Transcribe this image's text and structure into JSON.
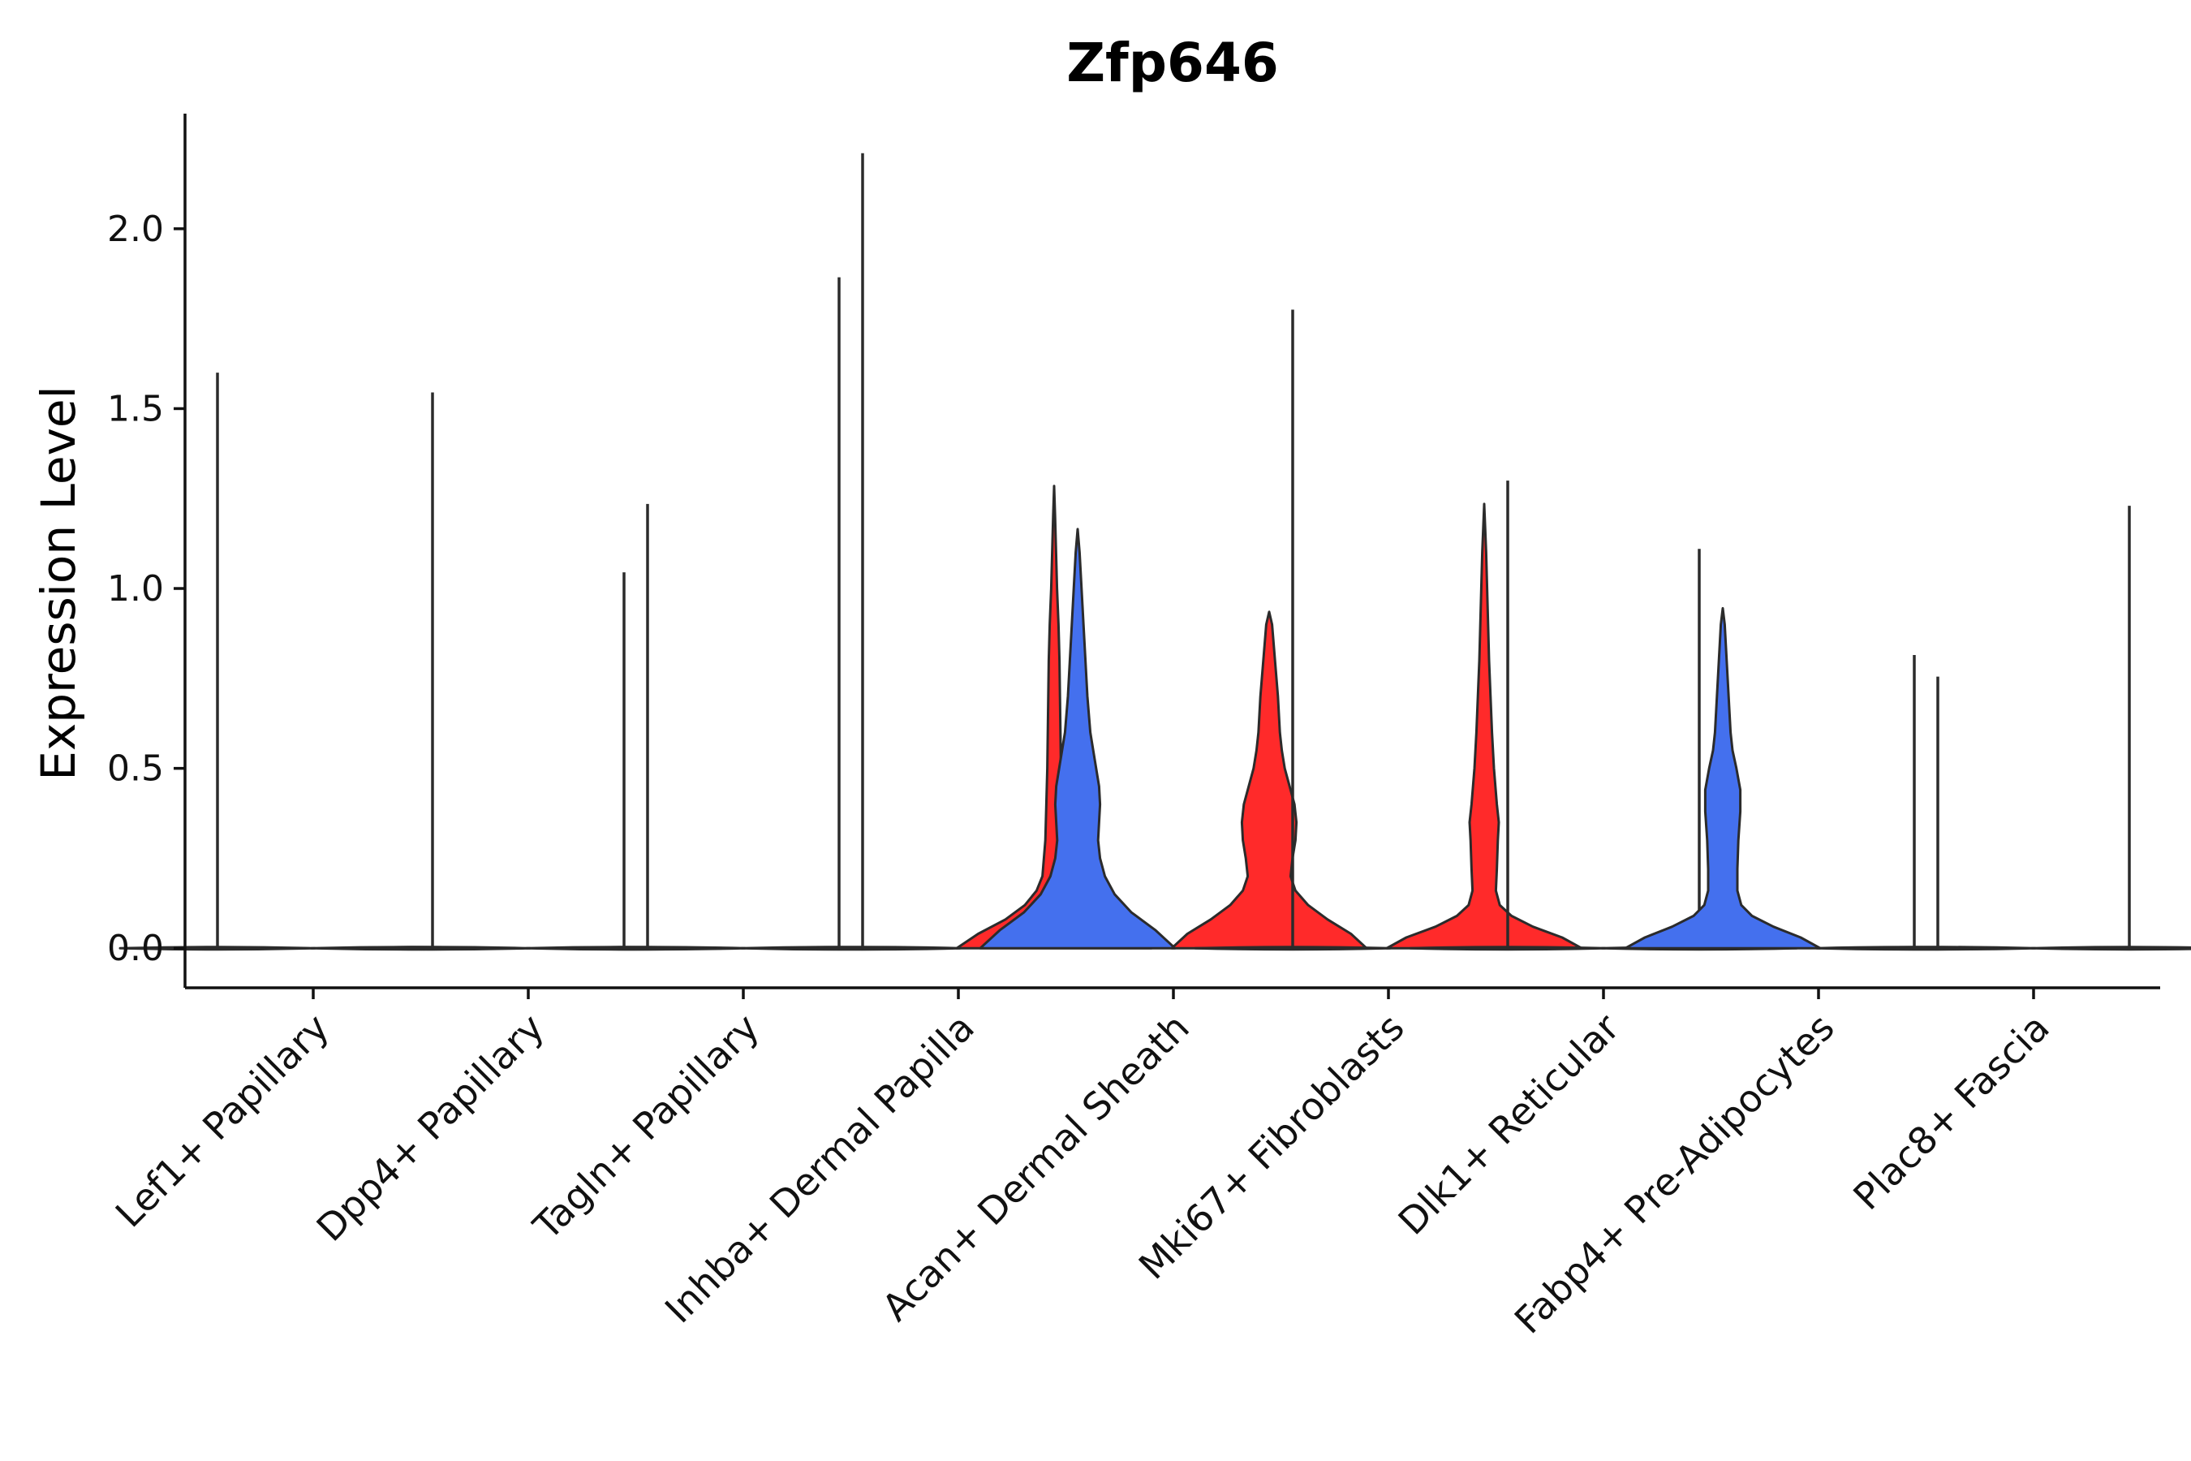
{
  "chart_data": {
    "type": "violin",
    "title": "Zfp646",
    "xlabel": "",
    "ylabel": "Expression Level",
    "ylim": [
      -0.11,
      2.32
    ],
    "yticks": [
      0.0,
      0.5,
      1.0,
      1.5,
      2.0
    ],
    "ytick_labels": [
      "0.0",
      "0.5",
      "1.0",
      "1.5",
      "2.0"
    ],
    "categories": [
      "Lef1+ Papillary",
      "Dpp4+ Papillary",
      "Tagln+ Papillary",
      "Inhba+ Dermal Papilla",
      "Acan+ Dermal Sheath",
      "Mki67+ Fibroblasts",
      "Dlk1+ Reticular",
      "Fabp4+ Pre-Adipocytes",
      "Plac8+ Fascia"
    ],
    "colors": {
      "red": "#ff2a2a",
      "blue": "#4470ee",
      "flat": "#ffffff",
      "line": "#2b2b2b"
    },
    "violins": [
      {
        "category": "Lef1+ Papillary",
        "side": "left",
        "color": "flat",
        "max": 1.6,
        "profile": []
      },
      {
        "category": "Lef1+ Papillary",
        "side": "right",
        "color": "flat",
        "max": 0,
        "profile": []
      },
      {
        "category": "Dpp4+ Papillary",
        "side": "left",
        "color": "flat",
        "max": 1.545,
        "profile": []
      },
      {
        "category": "Dpp4+ Papillary",
        "side": "right",
        "color": "flat",
        "max": 1.045,
        "profile": []
      },
      {
        "category": "Tagln+ Papillary",
        "side": "left",
        "color": "flat",
        "max": 1.235,
        "profile": []
      },
      {
        "category": "Tagln+ Papillary",
        "side": "right",
        "color": "flat",
        "max": 1.865,
        "profile": []
      },
      {
        "category": "Inhba+ Dermal Papilla",
        "side": "left",
        "color": "flat",
        "max": 2.21,
        "profile": []
      },
      {
        "category": "Inhba+ Dermal Papilla",
        "side": "right",
        "color": "red",
        "max": 1.285,
        "profile": [
          [
            0,
            1.0
          ],
          [
            0.04,
            0.78
          ],
          [
            0.08,
            0.5
          ],
          [
            0.12,
            0.3
          ],
          [
            0.16,
            0.18
          ],
          [
            0.2,
            0.12
          ],
          [
            0.3,
            0.09
          ],
          [
            0.4,
            0.08
          ],
          [
            0.5,
            0.07
          ],
          [
            0.6,
            0.065
          ],
          [
            0.7,
            0.06
          ],
          [
            0.8,
            0.055
          ],
          [
            0.9,
            0.045
          ],
          [
            1.0,
            0.03
          ],
          [
            1.1,
            0.02
          ],
          [
            1.2,
            0.01
          ],
          [
            1.285,
            0
          ]
        ]
      },
      {
        "category": "Acan+ Dermal Sheath",
        "side": "left",
        "color": "blue",
        "max": 1.165,
        "profile": [
          [
            0,
            1.0
          ],
          [
            0.05,
            0.8
          ],
          [
            0.1,
            0.55
          ],
          [
            0.15,
            0.38
          ],
          [
            0.2,
            0.28
          ],
          [
            0.25,
            0.23
          ],
          [
            0.3,
            0.21
          ],
          [
            0.35,
            0.22
          ],
          [
            0.4,
            0.23
          ],
          [
            0.45,
            0.22
          ],
          [
            0.5,
            0.19
          ],
          [
            0.55,
            0.16
          ],
          [
            0.6,
            0.13
          ],
          [
            0.7,
            0.1
          ],
          [
            0.8,
            0.08
          ],
          [
            0.9,
            0.06
          ],
          [
            1.0,
            0.04
          ],
          [
            1.1,
            0.02
          ],
          [
            1.165,
            0
          ]
        ]
      },
      {
        "category": "Acan+ Dermal Sheath",
        "side": "right",
        "color": "red",
        "max": 0.935,
        "profile": [
          [
            0,
            1.0
          ],
          [
            0.04,
            0.84
          ],
          [
            0.08,
            0.6
          ],
          [
            0.12,
            0.4
          ],
          [
            0.16,
            0.27
          ],
          [
            0.2,
            0.22
          ],
          [
            0.25,
            0.24
          ],
          [
            0.3,
            0.27
          ],
          [
            0.35,
            0.28
          ],
          [
            0.4,
            0.26
          ],
          [
            0.45,
            0.21
          ],
          [
            0.5,
            0.16
          ],
          [
            0.55,
            0.13
          ],
          [
            0.6,
            0.11
          ],
          [
            0.7,
            0.09
          ],
          [
            0.8,
            0.06
          ],
          [
            0.9,
            0.03
          ],
          [
            0.935,
            0
          ]
        ]
      },
      {
        "category": "Mki67+ Fibroblasts",
        "side": "left",
        "color": "flat",
        "max": 1.775,
        "profile": []
      },
      {
        "category": "Mki67+ Fibroblasts",
        "side": "right",
        "color": "red",
        "max": 1.235,
        "profile": [
          [
            0,
            1.0
          ],
          [
            0.03,
            0.8
          ],
          [
            0.06,
            0.5
          ],
          [
            0.09,
            0.28
          ],
          [
            0.12,
            0.16
          ],
          [
            0.16,
            0.12
          ],
          [
            0.22,
            0.13
          ],
          [
            0.3,
            0.14
          ],
          [
            0.35,
            0.15
          ],
          [
            0.4,
            0.13
          ],
          [
            0.5,
            0.1
          ],
          [
            0.6,
            0.08
          ],
          [
            0.7,
            0.065
          ],
          [
            0.8,
            0.05
          ],
          [
            0.9,
            0.04
          ],
          [
            1.0,
            0.03
          ],
          [
            1.1,
            0.02
          ],
          [
            1.235,
            0
          ]
        ]
      },
      {
        "category": "Dlk1+ Reticular",
        "side": "left",
        "color": "flat",
        "max": 1.3,
        "profile": []
      },
      {
        "category": "Dlk1+ Reticular",
        "side": "right",
        "color": "flat",
        "max": 1.11,
        "profile": []
      },
      {
        "category": "Fabp4+ Pre-Adipocytes",
        "side": "left",
        "color": "blue",
        "max": 0.945,
        "profile": [
          [
            0,
            1.0
          ],
          [
            0.03,
            0.8
          ],
          [
            0.06,
            0.52
          ],
          [
            0.09,
            0.3
          ],
          [
            0.12,
            0.19
          ],
          [
            0.16,
            0.15
          ],
          [
            0.22,
            0.15
          ],
          [
            0.3,
            0.16
          ],
          [
            0.38,
            0.18
          ],
          [
            0.44,
            0.18
          ],
          [
            0.5,
            0.14
          ],
          [
            0.55,
            0.1
          ],
          [
            0.6,
            0.08
          ],
          [
            0.7,
            0.06
          ],
          [
            0.8,
            0.04
          ],
          [
            0.9,
            0.02
          ],
          [
            0.945,
            0
          ]
        ]
      },
      {
        "category": "Fabp4+ Pre-Adipocytes",
        "side": "right",
        "color": "flat",
        "max": 0.815,
        "profile": []
      },
      {
        "category": "Plac8+ Fascia",
        "side": "left",
        "color": "flat",
        "max": 0.755,
        "profile": []
      },
      {
        "category": "Plac8+ Fascia",
        "side": "right",
        "color": "flat",
        "max": 1.23,
        "profile": []
      }
    ]
  }
}
